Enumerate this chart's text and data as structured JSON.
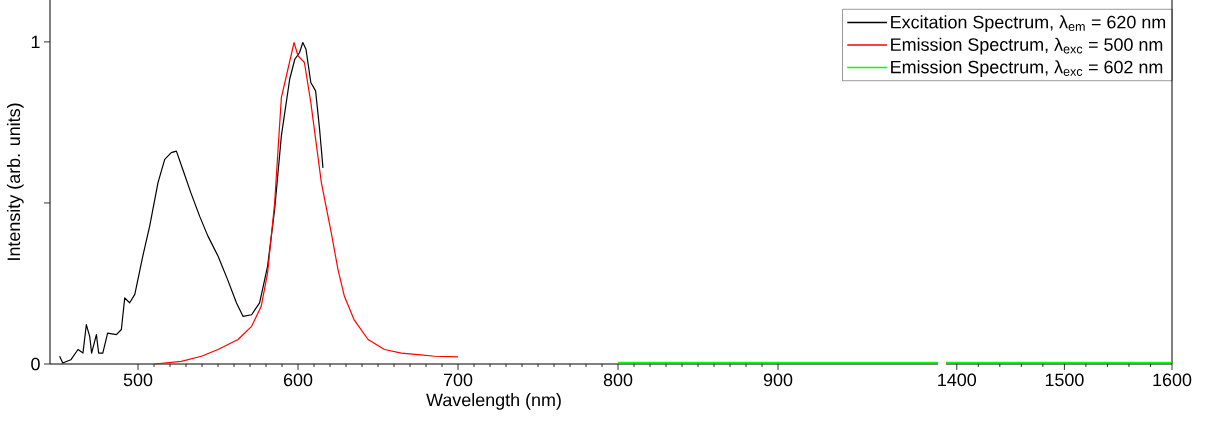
{
  "chart_data": [
    {
      "type": "line",
      "xlabel": "Wavelength (nm)",
      "ylabel": "Intensity (arb. units)",
      "legend": "top right",
      "xlim": [
        445,
        1000
      ],
      "xticks": [
        500,
        600,
        700,
        800,
        900
      ],
      "ylim": [
        0,
        1.13
      ],
      "yticks": [
        0,
        {
          "value": 0.5,
          "label": null
        },
        1
      ],
      "series": [
        {
          "name": "Excitation Spectrum, λ$_{em}$ = 620 nm",
          "color": "#000000",
          "x": [
            451,
            453,
            458,
            462.5,
            465.6,
            467.7,
            469.8,
            471,
            474,
            475.4,
            478,
            481,
            486.5,
            489.6,
            491.7,
            494.8,
            498,
            503,
            507.3,
            512.5,
            516.7,
            520.8,
            524,
            528,
            533,
            538.5,
            543.7,
            550,
            556,
            561.5,
            565.6,
            571,
            576,
            581,
            585.4,
            589.6,
            594.8,
            598,
            601,
            603,
            605,
            608,
            611,
            613.5,
            615.6
          ],
          "values": [
            0.024,
            0.003,
            0.013,
            0.045,
            0.034,
            0.122,
            0.086,
            0.034,
            0.091,
            0.034,
            0.034,
            0.096,
            0.091,
            0.107,
            0.205,
            0.19,
            0.216,
            0.335,
            0.428,
            0.563,
            0.635,
            0.656,
            0.661,
            0.604,
            0.532,
            0.459,
            0.397,
            0.335,
            0.262,
            0.19,
            0.148,
            0.153,
            0.19,
            0.304,
            0.48,
            0.708,
            0.884,
            0.946,
            0.967,
            0.998,
            0.977,
            0.874,
            0.848,
            0.728,
            0.609
          ]
        },
        {
          "name": "Emission Spectrum, λ$_{exc}$ = 500 nm",
          "color": "#ff0000",
          "x": [
            510.4,
            527,
            539.6,
            550,
            562.5,
            571,
            577,
            581,
            585.4,
            589.6,
            593.7,
            597.5,
            600,
            604,
            608,
            614.6,
            620.8,
            625,
            629,
            635,
            643.8,
            654,
            664.6,
            675,
            685.4,
            700
          ],
          "values": [
            0,
            0.008,
            0.024,
            0.045,
            0.076,
            0.117,
            0.179,
            0.283,
            0.5,
            0.827,
            0.915,
            0.998,
            0.957,
            0.936,
            0.812,
            0.563,
            0.407,
            0.293,
            0.21,
            0.138,
            0.076,
            0.045,
            0.034,
            0.029,
            0.024,
            0.022
          ]
        },
        {
          "name": "Emission Spectrum, λ$_{exc}$ = 602 nm",
          "color": "#00ff00",
          "x": [
            800,
            850,
            900,
            950,
            1000
          ],
          "values": [
            0.005,
            0.005,
            0.005,
            0.005,
            0.005
          ]
        }
      ]
    },
    {
      "type": "line",
      "xlim": [
        1390,
        1600
      ],
      "xticks": [
        1400,
        1500,
        1600
      ],
      "ylim": [
        0,
        1.13
      ],
      "tick_labels": "x",
      "series": [
        {
          "color": "#00ff00",
          "x": [
            1390,
            1450,
            1500,
            1550,
            1600
          ],
          "values": [
            0.005,
            0.005,
            0.005,
            0.005,
            0.005
          ]
        }
      ]
    }
  ]
}
